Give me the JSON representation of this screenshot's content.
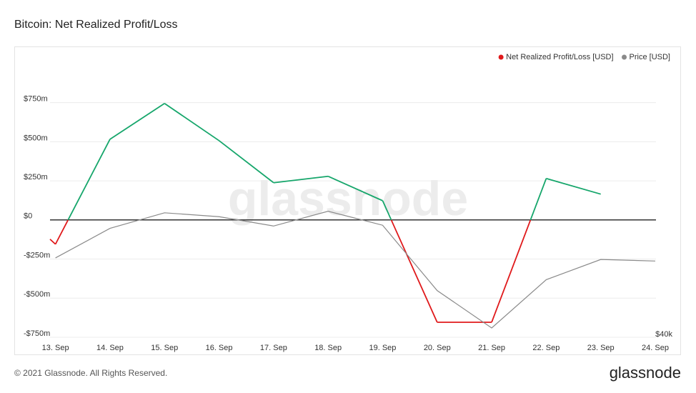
{
  "chart_data": {
    "type": "line",
    "title": "Bitcoin: Net Realized Profit/Loss",
    "x": [
      12.9,
      13,
      14,
      15,
      16,
      17,
      18,
      19,
      20,
      21,
      22,
      23
    ],
    "series": [
      {
        "name": "Net Realized Profit/Loss [USD]",
        "color": "#e0191b",
        "positive_color": "#16a66b",
        "values": [
          -123,
          -155,
          516,
          745,
          507,
          238,
          279,
          123,
          -654,
          -654,
          265,
          165
        ]
      },
      {
        "name": "Price [USD]",
        "color": "#8a8a8a",
        "axis": "y2",
        "x": [
          13,
          14,
          15,
          16,
          17,
          18,
          19,
          20,
          21,
          22,
          23,
          24
        ],
        "values": [
          45100,
          47000,
          48000,
          47750,
          47150,
          48100,
          47200,
          43000,
          40600,
          43700,
          45000,
          44900
        ]
      }
    ],
    "xlim": [
      12.9,
      24
    ],
    "xticks": [
      {
        "value": 13,
        "label": "13. Sep"
      },
      {
        "value": 14,
        "label": "14. Sep"
      },
      {
        "value": 15,
        "label": "15. Sep"
      },
      {
        "value": 16,
        "label": "16. Sep"
      },
      {
        "value": 17,
        "label": "17. Sep"
      },
      {
        "value": 18,
        "label": "18. Sep"
      },
      {
        "value": 19,
        "label": "19. Sep"
      },
      {
        "value": 20,
        "label": "20. Sep"
      },
      {
        "value": 21,
        "label": "21. Sep"
      },
      {
        "value": 22,
        "label": "22. Sep"
      },
      {
        "value": 23,
        "label": "23. Sep"
      },
      {
        "value": 24,
        "label": "24. Sep"
      }
    ],
    "ylim": [
      -750,
      1100
    ],
    "yticks": [
      {
        "value": -750,
        "label": "-$750m"
      },
      {
        "value": -500,
        "label": "-$500m"
      },
      {
        "value": -250,
        "label": "-$250m"
      },
      {
        "value": 0,
        "label": "$0"
      },
      {
        "value": 250,
        "label": "$250m"
      },
      {
        "value": 500,
        "label": "$500m"
      },
      {
        "value": 750,
        "label": "$750m"
      }
    ],
    "y2lim": [
      40000,
      58600
    ],
    "y2ticks": [
      {
        "value": 40000,
        "label": "$40k"
      }
    ],
    "grid": true,
    "legend": "top-right"
  },
  "watermark": "glassnode",
  "footer": {
    "copyright": "© 2021 Glassnode. All Rights Reserved.",
    "logo": "glassnode"
  }
}
